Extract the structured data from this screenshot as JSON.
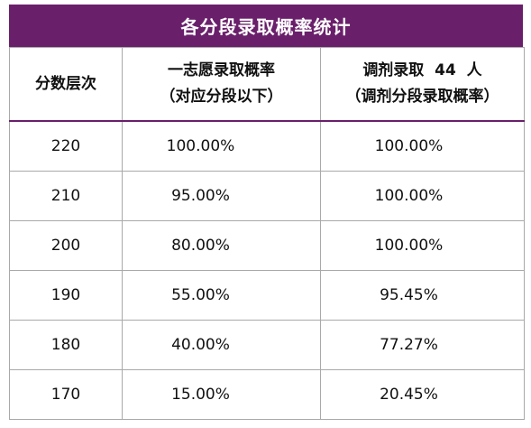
{
  "title": "各分段录取概率统计",
  "header": {
    "col1": "分数层次",
    "col2_line1": "一志愿录取概率",
    "col2_line2": "（对应分段以下）",
    "col3_prefix": "调剂录取",
    "col3_count": "44",
    "col3_suffix": "人",
    "col3_line2": "（调剂分段录取概率）"
  },
  "rows": [
    {
      "score": "220",
      "first_choice": "100.00%",
      "adjustment": "100.00%"
    },
    {
      "score": "210",
      "first_choice": "95.00%",
      "adjustment": "100.00%"
    },
    {
      "score": "200",
      "first_choice": "80.00%",
      "adjustment": "100.00%"
    },
    {
      "score": "190",
      "first_choice": "55.00%",
      "adjustment": "95.45%"
    },
    {
      "score": "180",
      "first_choice": "40.00%",
      "adjustment": "77.27%"
    },
    {
      "score": "170",
      "first_choice": "15.00%",
      "adjustment": "20.45%"
    }
  ],
  "colors": {
    "title_bg": "#6a1f6b",
    "title_text": "#ffffff",
    "border": "#a9a9a9"
  }
}
